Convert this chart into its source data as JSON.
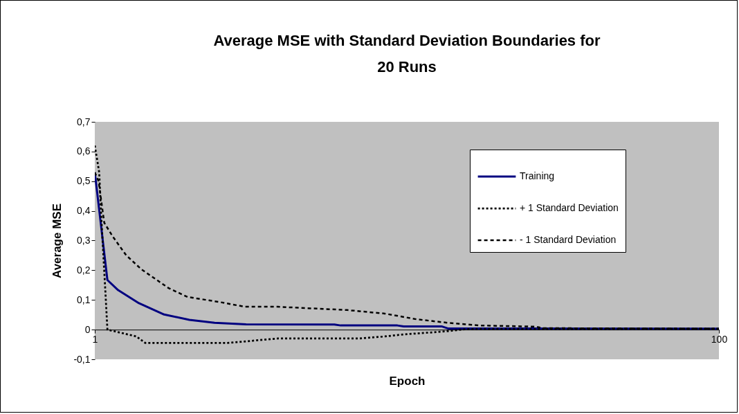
{
  "chart_data": {
    "type": "line",
    "title": "Average MSE with Standard Deviation Boundaries for 20 Runs",
    "xlabel": "Epoch",
    "ylabel": "Average MSE",
    "xlim": [
      1,
      100
    ],
    "xticks": [
      1,
      100
    ],
    "ylim": [
      -0.1,
      0.7
    ],
    "yticks": [
      {
        "value": -0.1,
        "label": "-0,1"
      },
      0,
      {
        "value": 0.1,
        "label": "0,1"
      },
      {
        "value": 0.2,
        "label": "0,2"
      },
      {
        "value": 0.3,
        "label": "0,3"
      },
      {
        "value": 0.4,
        "label": "0,4"
      },
      {
        "value": 0.5,
        "label": "0,5"
      },
      {
        "value": 0.6,
        "label": "0,6"
      },
      {
        "value": 0.7,
        "label": "0,7"
      }
    ],
    "grid": false,
    "legend": "top right",
    "marker": "none",
    "series": [
      {
        "name": "Training",
        "color": "#000080",
        "line_style": "solid",
        "x": [
          1,
          3,
          4.7,
          8,
          12,
          16,
          20,
          25,
          39,
          40,
          49,
          50,
          56,
          57,
          70,
          100
        ],
        "values": [
          0.53,
          0.167,
          0.133,
          0.089,
          0.051,
          0.033,
          0.023,
          0.018,
          0.017,
          0.014,
          0.014,
          0.011,
          0.011,
          0.004,
          0.004,
          0.003
        ]
      },
      {
        "name": "+ 1 Standard Deviation",
        "color": "#000000",
        "line_style": "dotted",
        "x": [
          1,
          1.7,
          2,
          2.7,
          3,
          3.8,
          7.6,
          9,
          15,
          22,
          30,
          43,
          47,
          50,
          54,
          57,
          60,
          100
        ],
        "values": [
          0.62,
          0.53,
          0.39,
          0.12,
          0.0,
          -0.004,
          -0.023,
          -0.045,
          -0.045,
          -0.045,
          -0.03,
          -0.03,
          -0.023,
          -0.016,
          -0.01,
          -0.005,
          0.002,
          0.003
        ]
      },
      {
        "name": "- 1 Standard Deviation",
        "color": "#000000",
        "line_style": "dashed",
        "x": [
          1,
          1.6,
          2.5,
          3.8,
          6,
          8.4,
          12.7,
          15.7,
          20.8,
          24.8,
          30,
          41,
          47,
          52,
          57,
          62,
          71,
          72,
          100
        ],
        "values": [
          0.53,
          0.5,
          0.36,
          0.315,
          0.25,
          0.203,
          0.14,
          0.11,
          0.093,
          0.077,
          0.077,
          0.066,
          0.054,
          0.035,
          0.023,
          0.014,
          0.01,
          0.005,
          0.003
        ]
      }
    ]
  }
}
